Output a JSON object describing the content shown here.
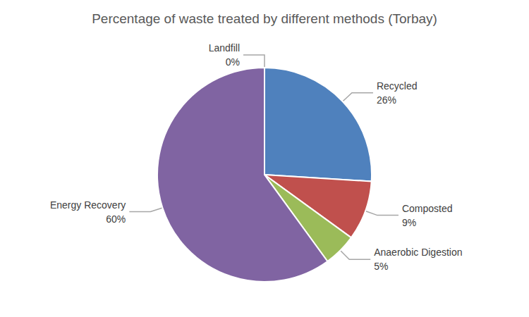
{
  "chart_data": {
    "type": "pie",
    "title": "Percentage of waste treated by different methods (Torbay)",
    "categories": [
      "Recycled",
      "Composted",
      "Anaerobic Digestion",
      "Energy Recovery",
      "Landfill"
    ],
    "values": [
      26,
      9,
      5,
      60,
      0
    ],
    "value_labels": [
      "26%",
      "9%",
      "5%",
      "60%",
      "0%"
    ],
    "colors": [
      "#4f81bd",
      "#c0504d",
      "#9bbb59",
      "#8064a2",
      "#4bacc6"
    ],
    "data_labels": true
  }
}
